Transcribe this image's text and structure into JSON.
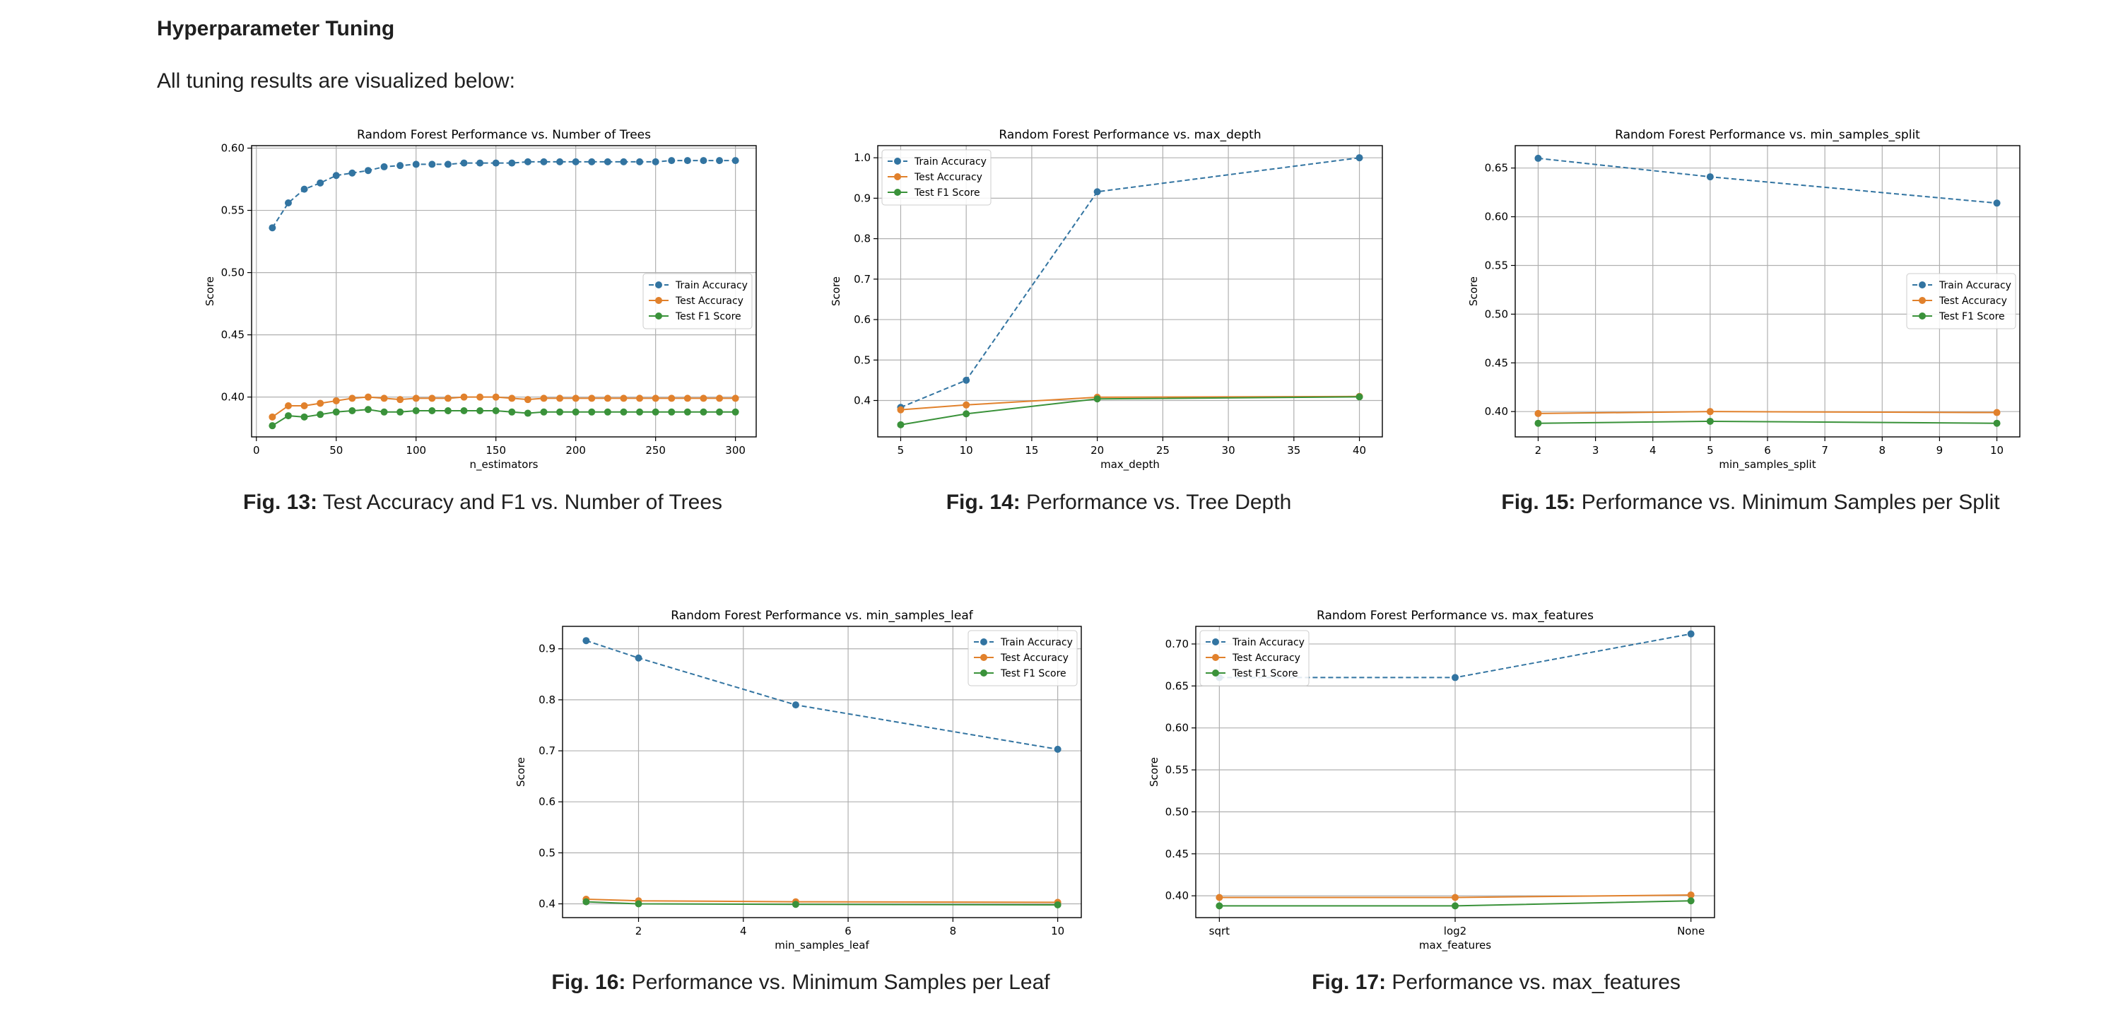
{
  "page": {
    "heading": "Hyperparameter Tuning",
    "intro": "All tuning results are visualized below:"
  },
  "colors": {
    "train": "#3274a1",
    "test": "#e1812c",
    "f1": "#3a923a"
  },
  "figures": [
    {
      "label": "Fig. 13:",
      "text": "Test Accuracy and F1 vs. Number of Trees"
    },
    {
      "label": "Fig. 14:",
      "text": "Performance vs. Tree Depth"
    },
    {
      "label": "Fig. 15:",
      "text": "Performance vs. Minimum Samples per Split"
    },
    {
      "label": "Fig. 16:",
      "text": "Performance vs. Minimum Samples per Leaf"
    },
    {
      "label": "Fig. 17:",
      "text": "Performance vs. max_features"
    }
  ],
  "chart_data": [
    {
      "type": "line",
      "title": "Random Forest Performance vs. Number of Trees",
      "xlabel": "n_estimators",
      "ylabel": "Score",
      "xlim": [
        -3,
        313
      ],
      "ylim": [
        0.368,
        0.602
      ],
      "xticks": [
        0,
        50,
        100,
        150,
        200,
        250,
        300
      ],
      "yticks": [
        0.4,
        0.45,
        0.5,
        0.55,
        0.6
      ],
      "ytick_format": 2,
      "grid": true,
      "legend": "center-right",
      "x": [
        10,
        20,
        30,
        40,
        50,
        60,
        70,
        80,
        90,
        100,
        110,
        120,
        130,
        140,
        150,
        160,
        170,
        180,
        190,
        200,
        210,
        220,
        230,
        240,
        250,
        260,
        270,
        280,
        290,
        300
      ],
      "series": [
        {
          "name": "Train Accuracy",
          "style": "dashed",
          "values": [
            0.536,
            0.556,
            0.567,
            0.572,
            0.578,
            0.58,
            0.582,
            0.585,
            0.586,
            0.587,
            0.587,
            0.587,
            0.588,
            0.588,
            0.588,
            0.588,
            0.589,
            0.589,
            0.589,
            0.589,
            0.589,
            0.589,
            0.589,
            0.589,
            0.589,
            0.59,
            0.59,
            0.59,
            0.59,
            0.59
          ]
        },
        {
          "name": "Test Accuracy",
          "style": "solid",
          "values": [
            0.384,
            0.393,
            0.393,
            0.395,
            0.397,
            0.399,
            0.4,
            0.399,
            0.398,
            0.399,
            0.399,
            0.399,
            0.4,
            0.4,
            0.4,
            0.399,
            0.398,
            0.399,
            0.399,
            0.399,
            0.399,
            0.399,
            0.399,
            0.399,
            0.399,
            0.399,
            0.399,
            0.399,
            0.399,
            0.399
          ]
        },
        {
          "name": "Test F1 Score",
          "style": "solid",
          "values": [
            0.377,
            0.385,
            0.384,
            0.386,
            0.388,
            0.389,
            0.39,
            0.388,
            0.388,
            0.389,
            0.389,
            0.389,
            0.389,
            0.389,
            0.389,
            0.388,
            0.387,
            0.388,
            0.388,
            0.388,
            0.388,
            0.388,
            0.388,
            0.388,
            0.388,
            0.388,
            0.388,
            0.388,
            0.388,
            0.388
          ]
        }
      ]
    },
    {
      "type": "line",
      "title": "Random Forest Performance vs. max_depth",
      "xlabel": "max_depth",
      "ylabel": "Score",
      "xlim": [
        3.25,
        41.75
      ],
      "ylim": [
        0.31,
        1.03
      ],
      "xticks": [
        5,
        10,
        15,
        20,
        25,
        30,
        35,
        40
      ],
      "yticks": [
        0.4,
        0.5,
        0.6,
        0.7,
        0.8,
        0.9,
        1.0
      ],
      "ytick_format": 1,
      "grid": true,
      "legend": "top-left",
      "x": [
        5,
        10,
        20,
        40
      ],
      "series": [
        {
          "name": "Train Accuracy",
          "style": "dashed",
          "values": [
            0.383,
            0.45,
            0.916,
            1.0
          ]
        },
        {
          "name": "Test Accuracy",
          "style": "solid",
          "values": [
            0.377,
            0.389,
            0.408,
            0.41
          ]
        },
        {
          "name": "Test F1 Score",
          "style": "solid",
          "values": [
            0.34,
            0.367,
            0.404,
            0.409
          ]
        }
      ]
    },
    {
      "type": "line",
      "title": "Random Forest Performance vs. min_samples_split",
      "xlabel": "min_samples_split",
      "ylabel": "Score",
      "xlim": [
        1.6,
        10.4
      ],
      "ylim": [
        0.374,
        0.673
      ],
      "xticks": [
        2,
        3,
        4,
        5,
        6,
        7,
        8,
        9,
        10
      ],
      "yticks": [
        0.4,
        0.45,
        0.5,
        0.55,
        0.6,
        0.65
      ],
      "ytick_format": 2,
      "grid": true,
      "legend": "center-right",
      "x": [
        2,
        5,
        10
      ],
      "series": [
        {
          "name": "Train Accuracy",
          "style": "dashed",
          "values": [
            0.66,
            0.641,
            0.614
          ]
        },
        {
          "name": "Test Accuracy",
          "style": "solid",
          "values": [
            0.398,
            0.4,
            0.399
          ]
        },
        {
          "name": "Test F1 Score",
          "style": "solid",
          "values": [
            0.388,
            0.39,
            0.388
          ]
        }
      ]
    },
    {
      "type": "line",
      "title": "Random Forest Performance vs. min_samples_leaf",
      "xlabel": "min_samples_leaf",
      "ylabel": "Score",
      "xlim": [
        0.55,
        10.45
      ],
      "ylim": [
        0.373,
        0.944
      ],
      "xticks": [
        2,
        4,
        6,
        8,
        10
      ],
      "yticks": [
        0.4,
        0.5,
        0.6,
        0.7,
        0.8,
        0.9
      ],
      "ytick_format": 1,
      "grid": true,
      "legend": "top-right",
      "x": [
        1,
        2,
        5,
        10
      ],
      "series": [
        {
          "name": "Train Accuracy",
          "style": "dashed",
          "values": [
            0.916,
            0.882,
            0.79,
            0.703
          ]
        },
        {
          "name": "Test Accuracy",
          "style": "solid",
          "values": [
            0.409,
            0.406,
            0.404,
            0.403
          ]
        },
        {
          "name": "Test F1 Score",
          "style": "solid",
          "values": [
            0.404,
            0.4,
            0.399,
            0.398
          ]
        }
      ]
    },
    {
      "type": "line",
      "title": "Random Forest Performance vs. max_features",
      "xlabel": "max_features",
      "ylabel": "Score",
      "categories": [
        "sqrt",
        "log2",
        "None"
      ],
      "xlim": [
        -0.1,
        2.1
      ],
      "ylim": [
        0.374,
        0.721
      ],
      "xticks": [
        0,
        1,
        2
      ],
      "yticks": [
        0.4,
        0.45,
        0.5,
        0.55,
        0.6,
        0.65,
        0.7
      ],
      "ytick_format": 2,
      "grid": true,
      "legend": "top-left",
      "x": [
        0,
        1,
        2
      ],
      "series": [
        {
          "name": "Train Accuracy",
          "style": "dashed",
          "values": [
            0.66,
            0.66,
            0.712
          ]
        },
        {
          "name": "Test Accuracy",
          "style": "solid",
          "values": [
            0.398,
            0.398,
            0.401
          ]
        },
        {
          "name": "Test F1 Score",
          "style": "solid",
          "values": [
            0.388,
            0.388,
            0.394
          ]
        }
      ]
    }
  ]
}
